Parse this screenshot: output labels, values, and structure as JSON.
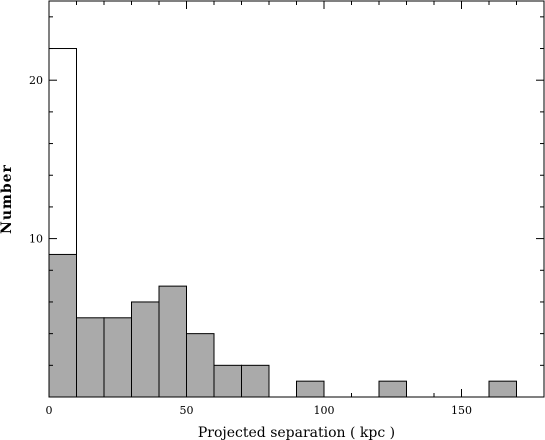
{
  "chart_data": {
    "type": "bar",
    "title": "",
    "xlabel": "Projected separation ( kpc )",
    "ylabel": "Number",
    "xlim": [
      0,
      180
    ],
    "ylim": [
      0,
      25
    ],
    "bin_width": 10,
    "x_ticks": [
      0,
      50,
      100,
      150
    ],
    "y_ticks": [
      10,
      20
    ],
    "grid": false,
    "legend": "none",
    "series": [
      {
        "style": "open",
        "color": "#ffffff",
        "bins": [
          [
            0,
            22
          ]
        ]
      },
      {
        "style": "filled",
        "color": "#aaaaaa",
        "bins": [
          [
            0,
            9
          ],
          [
            10,
            5
          ],
          [
            20,
            5
          ],
          [
            30,
            6
          ],
          [
            40,
            7
          ],
          [
            50,
            4
          ],
          [
            60,
            2
          ],
          [
            70,
            2
          ],
          [
            90,
            1
          ],
          [
            120,
            1
          ],
          [
            160,
            1
          ]
        ]
      }
    ]
  }
}
